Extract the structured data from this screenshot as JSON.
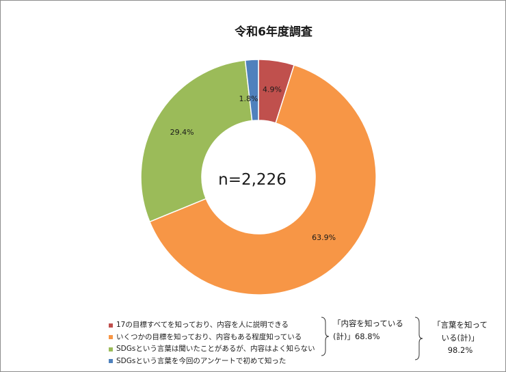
{
  "chart_data": {
    "type": "pie",
    "title": "令和6年度調査",
    "center_text": "n=2,226",
    "series": [
      {
        "name": "17の目標すべてを知っており、内容を人に説明できる",
        "value": 4.9,
        "label": "4.9%",
        "color": "#c0504d"
      },
      {
        "name": "いくつかの目標を知っており、内容もある程度知っている",
        "value": 63.9,
        "label": "63.9%",
        "color": "#f79646"
      },
      {
        "name": "SDGsという言葉は聞いたことがあるが、内容はよく知らない",
        "value": 29.4,
        "label": "29.4%",
        "color": "#9bbb59"
      },
      {
        "name": "SDGsという言葉を今回のアンケートで初めて知った",
        "value": 1.8,
        "label": "1.8%",
        "color": "#4f81bd"
      }
    ],
    "legend_position": "bottom-left"
  },
  "annotations": {
    "content_known_line1": "「内容を知っている",
    "content_known_line2": "(計)」68.8%",
    "word_known_line1": "「言葉を知って",
    "word_known_line2": "いる(計)」",
    "word_known_line3": "98.2%"
  }
}
